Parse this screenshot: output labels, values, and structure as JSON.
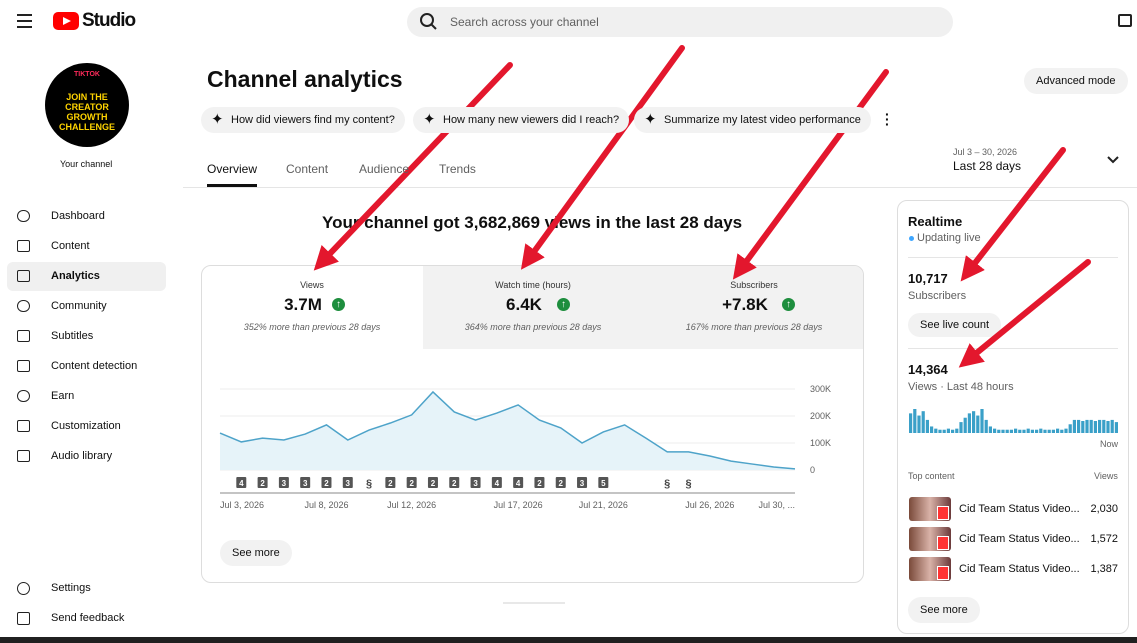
{
  "header": {
    "brand": "Studio",
    "search_placeholder": "Search across your channel"
  },
  "sidebar": {
    "avatar_top": "TIKTOK",
    "avatar_text": "JOIN THE CREATOR GROWTH CHALLENGE",
    "channel_label": "Your channel",
    "items": [
      "Dashboard",
      "Content",
      "Analytics",
      "Community",
      "Subtitles",
      "Content detection",
      "Earn",
      "Customization",
      "Audio library"
    ],
    "bottom_items": [
      "Settings",
      "Send feedback"
    ]
  },
  "main": {
    "title": "Channel analytics",
    "advanced_mode": "Advanced mode",
    "chips": [
      "How did viewers find my content?",
      "How many new viewers did I reach?",
      "Summarize my latest video performance"
    ],
    "tabs": [
      "Overview",
      "Content",
      "Audience",
      "Trends"
    ],
    "date_range": "Jul 3 – 30, 2026",
    "date_label": "Last 28 days",
    "headline": "Your channel got 3,682,869 views in the last 28 days",
    "metrics": [
      {
        "label": "Views",
        "value": "3.7M",
        "note": "352% more than previous 28 days"
      },
      {
        "label": "Watch time (hours)",
        "value": "6.4K",
        "note": "364% more than previous 28 days"
      },
      {
        "label": "Subscribers",
        "value": "+7.8K",
        "note": "167% more than previous 28 days"
      }
    ],
    "chart": {
      "type": "area",
      "color": "#4ea3c9",
      "categories": [
        "Jul 3, 2026",
        null,
        null,
        null,
        null,
        "Jul 8, 2026",
        null,
        null,
        null,
        "Jul 12, 2026",
        null,
        null,
        null,
        null,
        "Jul 17, 2026",
        null,
        null,
        null,
        "Jul 21, 2026",
        null,
        null,
        null,
        null,
        "Jul 26, 2026",
        null,
        null,
        null,
        "Jul 30, ..."
      ],
      "values": [
        137000,
        104000,
        118000,
        111000,
        133000,
        167000,
        111000,
        148000,
        174000,
        204000,
        289000,
        215000,
        185000,
        211000,
        241000,
        185000,
        156000,
        100000,
        141000,
        167000,
        118000,
        67000,
        67000,
        52000,
        33000,
        22000,
        11000,
        4000
      ],
      "ylim": [
        0,
        300000
      ],
      "yticks": [
        0,
        {
          "value": 100000,
          "label": "100K"
        },
        {
          "value": 200000,
          "label": "200K"
        },
        {
          "value": 300000,
          "label": "300K"
        }
      ],
      "markers": [
        null,
        "4",
        "2",
        "3",
        "3",
        "2",
        "3",
        null,
        "2",
        "2",
        "2",
        "2",
        "3",
        "4",
        "4",
        "2",
        "2",
        "3",
        "5",
        null,
        null,
        null,
        null,
        null,
        null,
        null,
        null,
        null
      ]
    },
    "see_more": "See more"
  },
  "realtime": {
    "title": "Realtime",
    "status": "Updating live",
    "subscribers": "10,717",
    "subscribers_label": "Subscribers",
    "see_live_count": "See live count",
    "views": "14,364",
    "views_label": "Views · Last 48 hours",
    "bars": [
      18,
      22,
      16,
      20,
      12,
      6,
      4,
      3,
      3,
      4,
      3,
      4,
      10,
      14,
      18,
      20,
      16,
      22,
      12,
      6,
      4,
      3,
      3,
      3,
      3,
      4,
      3,
      3,
      4,
      3,
      3,
      4,
      3,
      3,
      3,
      4,
      3,
      4,
      8,
      12,
      12,
      11,
      12,
      12,
      11,
      12,
      12,
      11,
      12,
      10
    ],
    "now": "Now",
    "top_content": "Top content",
    "views_header": "Views",
    "items": [
      {
        "title": "Cid Team Status Video...",
        "views": "2,030"
      },
      {
        "title": "Cid Team Status Video...",
        "views": "1,572"
      },
      {
        "title": "Cid Team Status Video...",
        "views": "1,387"
      }
    ],
    "see_more": "See more"
  }
}
